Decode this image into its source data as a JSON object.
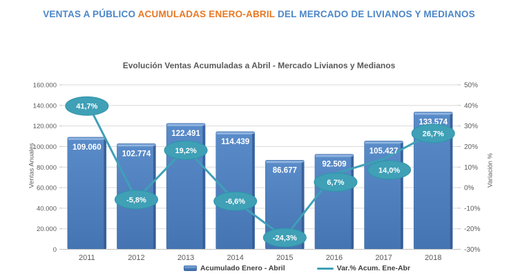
{
  "header": {
    "part1": "VENTAS A PÚBLICO ",
    "part2": "ACUMULADAS ENERO-ABRIL",
    "part3": " DEL MERCADO DE LIVIANOS Y MEDIANOS"
  },
  "colors": {
    "header_blue": "#4a86c8",
    "header_orange": "#e87722",
    "bar_fill": "#4a7bb8",
    "bar_bevel": "#8fb3df",
    "bar_shadow": "#35598f",
    "line_teal": "#3fa0b6",
    "gridline": "#d9d9d9",
    "axis_text": "#595959"
  },
  "chart_data": {
    "type": "bar",
    "title": "Evolución Ventas Acumuladas a Abril - Mercado Livianos y Medianos",
    "categories": [
      "2011",
      "2012",
      "2013",
      "2014",
      "2015",
      "2016",
      "2017",
      "2018"
    ],
    "series": [
      {
        "name": "Acumulado Enero - Abril",
        "type": "bar",
        "axis": "left",
        "color": "#4a7bb8",
        "values": [
          109060,
          102774,
          122491,
          114439,
          86677,
          92509,
          105427,
          133574
        ],
        "labels": [
          "109.060",
          "102.774",
          "122.491",
          "114.439",
          "86.677",
          "92.509",
          "105.427",
          "133.574"
        ]
      },
      {
        "name": "Var.% Acum. Ene-Abr",
        "type": "line",
        "axis": "right",
        "color": "#3fa0b6",
        "values": [
          41.7,
          -5.8,
          19.2,
          -6.6,
          -24.3,
          6.7,
          14.0,
          26.7
        ],
        "labels": [
          "41,7%",
          "-5,8%",
          "19,2%",
          "-6,6%",
          "-24,3%",
          "6,7%",
          "14,0%",
          "26,7%"
        ],
        "label_dx": [
          0,
          0,
          0,
          0,
          0,
          2,
          8,
          0
        ],
        "label_dy": [
          6,
          0,
          3,
          0,
          0,
          12,
          16,
          1
        ]
      }
    ],
    "left_axis": {
      "title": "Ventas Anuales",
      "min": 0,
      "max": 160000,
      "tick_labels": [
        "0",
        "20.000",
        "40.000",
        "60.000",
        "80.000",
        "100.000",
        "120.000",
        "140.000",
        "160.000"
      ]
    },
    "right_axis": {
      "title": "Variación %",
      "min": -30,
      "max": 50,
      "tick_labels": [
        "-30%",
        "-20%",
        "-10%",
        "0%",
        "10%",
        "20%",
        "30%",
        "40%",
        "50%"
      ]
    },
    "grid": true,
    "legend_position": "bottom"
  }
}
